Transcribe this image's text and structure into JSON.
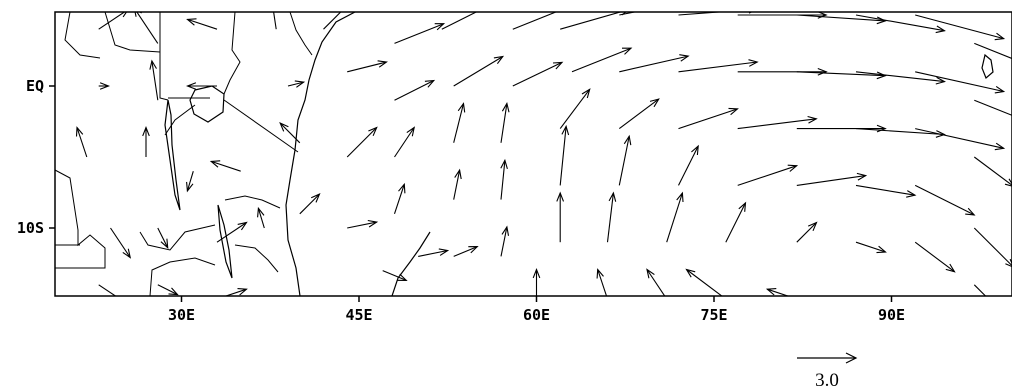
{
  "figure": {
    "type": "wind-vector-map",
    "region": {
      "lon_range": [
        20,
        100
      ],
      "lat_range": [
        -16,
        6
      ],
      "lon_ticks": [
        30,
        45,
        60,
        75,
        90
      ],
      "lat_ticks": [
        0,
        -10
      ]
    },
    "labels": {
      "x_ticks": [
        "30E",
        "45E",
        "60E",
        "75E",
        "90E"
      ],
      "y_ticks": [
        "EQ",
        "10S"
      ]
    },
    "reference_vector": {
      "magnitude": 3.0,
      "label": "3.0"
    },
    "colors": {
      "ink": "#000000",
      "background": "#ffffff"
    }
  },
  "chart_data": {
    "type": "vector-field",
    "units_reference": 3.0,
    "xlim": [
      20,
      100
    ],
    "ylim": [
      -16,
      6
    ],
    "xticks": [
      "30E",
      "45E",
      "60E",
      "75E",
      "90E"
    ],
    "yticks": [
      "EQ",
      "10S"
    ],
    "vectors": [
      {
        "lon": 23,
        "lat": 4,
        "u": 1.5,
        "v": 1.0
      },
      {
        "lon": 28,
        "lat": 3,
        "u": -1.2,
        "v": 1.8
      },
      {
        "lon": 33,
        "lat": 4,
        "u": -1.5,
        "v": 0.5
      },
      {
        "lon": 23,
        "lat": 0,
        "u": 0.5,
        "v": 0.0
      },
      {
        "lon": 28,
        "lat": -1,
        "u": -0.3,
        "v": 2.0
      },
      {
        "lon": 33,
        "lat": 0,
        "u": -1.5,
        "v": 0.0
      },
      {
        "lon": 22,
        "lat": -5,
        "u": -0.5,
        "v": 1.5
      },
      {
        "lon": 27,
        "lat": -5,
        "u": 0.0,
        "v": 1.5
      },
      {
        "lon": 31,
        "lat": -6,
        "u": -0.3,
        "v": -1.0
      },
      {
        "lon": 35,
        "lat": -6,
        "u": -1.5,
        "v": 0.5
      },
      {
        "lon": 24,
        "lat": -10,
        "u": 1.0,
        "v": -1.5
      },
      {
        "lon": 28,
        "lat": -10,
        "u": 0.5,
        "v": -1.0
      },
      {
        "lon": 33,
        "lat": -11,
        "u": 1.5,
        "v": 1.0
      },
      {
        "lon": 37,
        "lat": -10,
        "u": -0.3,
        "v": 1.0
      },
      {
        "lon": 23,
        "lat": -14,
        "u": 1.5,
        "v": -1.0
      },
      {
        "lon": 28,
        "lat": -14,
        "u": 1.0,
        "v": -0.5
      },
      {
        "lon": 33,
        "lat": -15,
        "u": 1.5,
        "v": 0.5
      },
      {
        "lon": 38,
        "lat": 4,
        "u": -0.3,
        "v": 2.0
      },
      {
        "lon": 42,
        "lat": 4,
        "u": 1.5,
        "v": 1.5
      },
      {
        "lon": 39,
        "lat": 0,
        "u": 0.8,
        "v": 0.2
      },
      {
        "lon": 44,
        "lat": 1,
        "u": 2.0,
        "v": 0.5
      },
      {
        "lon": 40,
        "lat": -4,
        "u": -1.0,
        "v": 1.0
      },
      {
        "lon": 44,
        "lat": -5,
        "u": 1.5,
        "v": 1.5
      },
      {
        "lon": 40,
        "lat": -9,
        "u": 1.0,
        "v": 1.0
      },
      {
        "lon": 44,
        "lat": -10,
        "u": 1.5,
        "v": 0.3
      },
      {
        "lon": 47,
        "lat": -13,
        "u": 1.2,
        "v": -0.5
      },
      {
        "lon": 48,
        "lat": 3,
        "u": 2.5,
        "v": 1.0
      },
      {
        "lon": 48,
        "lat": -1,
        "u": 2.0,
        "v": 1.0
      },
      {
        "lon": 48,
        "lat": -5,
        "u": 1.0,
        "v": 1.5
      },
      {
        "lon": 48,
        "lat": -9,
        "u": 0.5,
        "v": 1.5
      },
      {
        "lon": 50,
        "lat": -12,
        "u": 1.5,
        "v": 0.3
      },
      {
        "lon": 52,
        "lat": 4,
        "u": 3.0,
        "v": 1.5
      },
      {
        "lon": 53,
        "lat": 0,
        "u": 2.5,
        "v": 1.5
      },
      {
        "lon": 53,
        "lat": -4,
        "u": 0.5,
        "v": 2.0
      },
      {
        "lon": 53,
        "lat": -8,
        "u": 0.3,
        "v": 1.5
      },
      {
        "lon": 53,
        "lat": -12,
        "u": 1.2,
        "v": 0.5
      },
      {
        "lon": 58,
        "lat": 4,
        "u": 3.0,
        "v": 1.2
      },
      {
        "lon": 58,
        "lat": 0,
        "u": 2.5,
        "v": 1.2
      },
      {
        "lon": 57,
        "lat": -4,
        "u": 0.3,
        "v": 2.0
      },
      {
        "lon": 57,
        "lat": -8,
        "u": 0.2,
        "v": 2.0
      },
      {
        "lon": 57,
        "lat": -12,
        "u": 0.3,
        "v": 1.5
      },
      {
        "lon": 62,
        "lat": 4,
        "u": 3.5,
        "v": 1.0
      },
      {
        "lon": 63,
        "lat": 1,
        "u": 3.0,
        "v": 1.2
      },
      {
        "lon": 62,
        "lat": -3,
        "u": 1.5,
        "v": 2.0
      },
      {
        "lon": 62,
        "lat": -7,
        "u": 0.3,
        "v": 3.0
      },
      {
        "lon": 62,
        "lat": -11,
        "u": 0.0,
        "v": 2.5
      },
      {
        "lon": 60,
        "lat": -15,
        "u": 0.0,
        "v": 1.5
      },
      {
        "lon": 67,
        "lat": 5,
        "u": 4.0,
        "v": 0.8
      },
      {
        "lon": 67,
        "lat": 1,
        "u": 3.5,
        "v": 0.8
      },
      {
        "lon": 67,
        "lat": -3,
        "u": 2.0,
        "v": 1.5
      },
      {
        "lon": 67,
        "lat": -7,
        "u": 0.5,
        "v": 2.5
      },
      {
        "lon": 66,
        "lat": -11,
        "u": 0.3,
        "v": 2.5
      },
      {
        "lon": 66,
        "lat": -15,
        "u": -0.5,
        "v": 1.5
      },
      {
        "lon": 72,
        "lat": 5,
        "u": 4.0,
        "v": 0.3
      },
      {
        "lon": 72,
        "lat": 1,
        "u": 4.0,
        "v": 0.5
      },
      {
        "lon": 72,
        "lat": -3,
        "u": 3.0,
        "v": 1.0
      },
      {
        "lon": 72,
        "lat": -7,
        "u": 1.0,
        "v": 2.0
      },
      {
        "lon": 71,
        "lat": -11,
        "u": 0.8,
        "v": 2.5
      },
      {
        "lon": 71,
        "lat": -15,
        "u": -1.0,
        "v": 1.5
      },
      {
        "lon": 77,
        "lat": 5,
        "u": 4.5,
        "v": 0.0
      },
      {
        "lon": 77,
        "lat": 1,
        "u": 4.5,
        "v": 0.0
      },
      {
        "lon": 77,
        "lat": -3,
        "u": 4.0,
        "v": 0.5
      },
      {
        "lon": 77,
        "lat": -7,
        "u": 3.0,
        "v": 1.0
      },
      {
        "lon": 76,
        "lat": -11,
        "u": 1.0,
        "v": 2.0
      },
      {
        "lon": 76,
        "lat": -15,
        "u": -2.0,
        "v": 1.5
      },
      {
        "lon": 82,
        "lat": 5,
        "u": 4.5,
        "v": -0.3
      },
      {
        "lon": 82,
        "lat": 1,
        "u": 4.5,
        "v": -0.2
      },
      {
        "lon": 82,
        "lat": -3,
        "u": 4.5,
        "v": 0.0
      },
      {
        "lon": 82,
        "lat": -7,
        "u": 3.5,
        "v": 0.5
      },
      {
        "lon": 82,
        "lat": -11,
        "u": 1.0,
        "v": 1.0
      },
      {
        "lon": 82,
        "lat": -15,
        "u": -1.5,
        "v": 0.5
      },
      {
        "lon": 87,
        "lat": 5,
        "u": 4.5,
        "v": -0.8
      },
      {
        "lon": 87,
        "lat": 1,
        "u": 4.5,
        "v": -0.5
      },
      {
        "lon": 87,
        "lat": -3,
        "u": 4.5,
        "v": -0.3
      },
      {
        "lon": 87,
        "lat": -7,
        "u": 3.0,
        "v": -0.5
      },
      {
        "lon": 87,
        "lat": -11,
        "u": 1.5,
        "v": -0.5
      },
      {
        "lon": 87,
        "lat": -15,
        "u": 0.0,
        "v": -1.0
      },
      {
        "lon": 92,
        "lat": 5,
        "u": 4.5,
        "v": -1.2
      },
      {
        "lon": 92,
        "lat": 1,
        "u": 4.5,
        "v": -1.0
      },
      {
        "lon": 92,
        "lat": -3,
        "u": 4.5,
        "v": -1.0
      },
      {
        "lon": 92,
        "lat": -7,
        "u": 3.0,
        "v": -1.5
      },
      {
        "lon": 92,
        "lat": -11,
        "u": 2.0,
        "v": -1.5
      },
      {
        "lon": 92,
        "lat": -15,
        "u": 0.5,
        "v": -1.5
      },
      {
        "lon": 97,
        "lat": 3,
        "u": 2.5,
        "v": -1.0
      },
      {
        "lon": 97,
        "lat": -1,
        "u": 2.5,
        "v": -1.0
      },
      {
        "lon": 97,
        "lat": -5,
        "u": 2.0,
        "v": -1.5
      },
      {
        "lon": 97,
        "lat": -10,
        "u": 2.0,
        "v": -2.0
      },
      {
        "lon": 97,
        "lat": -14,
        "u": 1.5,
        "v": -1.5
      }
    ]
  }
}
